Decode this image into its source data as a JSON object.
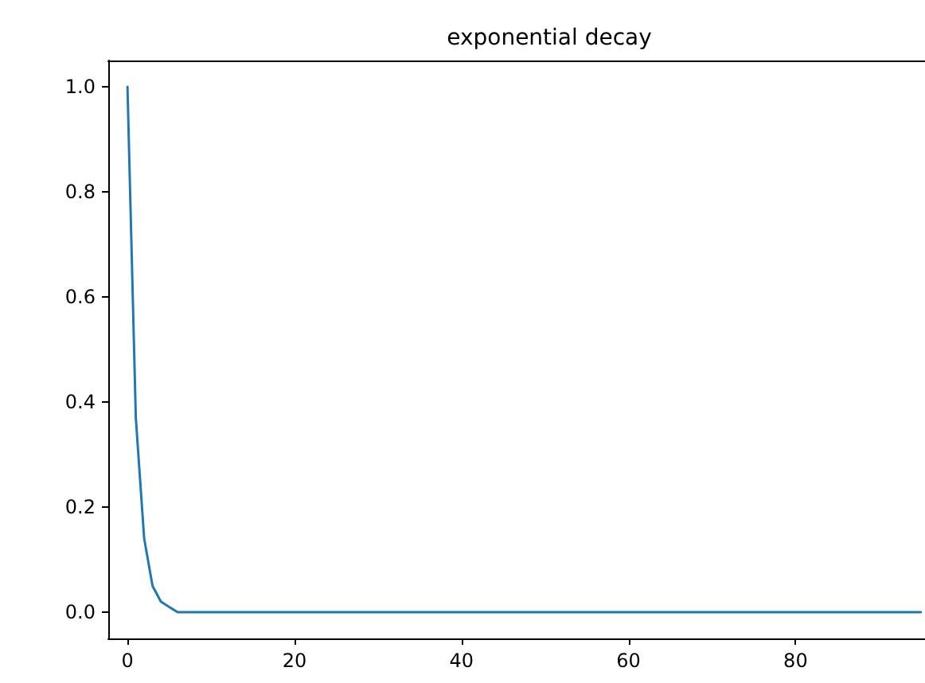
{
  "chart_data": {
    "type": "line",
    "title": "exponential decay",
    "series": [
      {
        "color": "#1f77b4",
        "x": [
          0,
          1,
          2,
          3,
          4,
          5,
          6,
          7,
          8,
          10,
          20,
          40,
          60,
          80,
          95
        ],
        "values": [
          1.0,
          0.37,
          0.14,
          0.05,
          0.02,
          0.01,
          0.0,
          0.0,
          0.0,
          0.0,
          0.0,
          0.0,
          0.0,
          0.0,
          0.0
        ]
      }
    ],
    "xlim": [
      -2.3,
      95.5
    ],
    "xticks": [
      0,
      20,
      40,
      60,
      80
    ],
    "ylim": [
      -0.05,
      1.05
    ],
    "yticks": [
      {
        "value": 0,
        "label": "0.0"
      },
      {
        "value": 0.2,
        "label": "0.2"
      },
      {
        "value": 0.4,
        "label": "0.4"
      },
      {
        "value": 0.6,
        "label": "0.6"
      },
      {
        "value": 0.8,
        "label": "0.8"
      },
      {
        "value": 1,
        "label": "1.0"
      }
    ],
    "grid": false,
    "marker": "none",
    "line_style": "solid"
  }
}
